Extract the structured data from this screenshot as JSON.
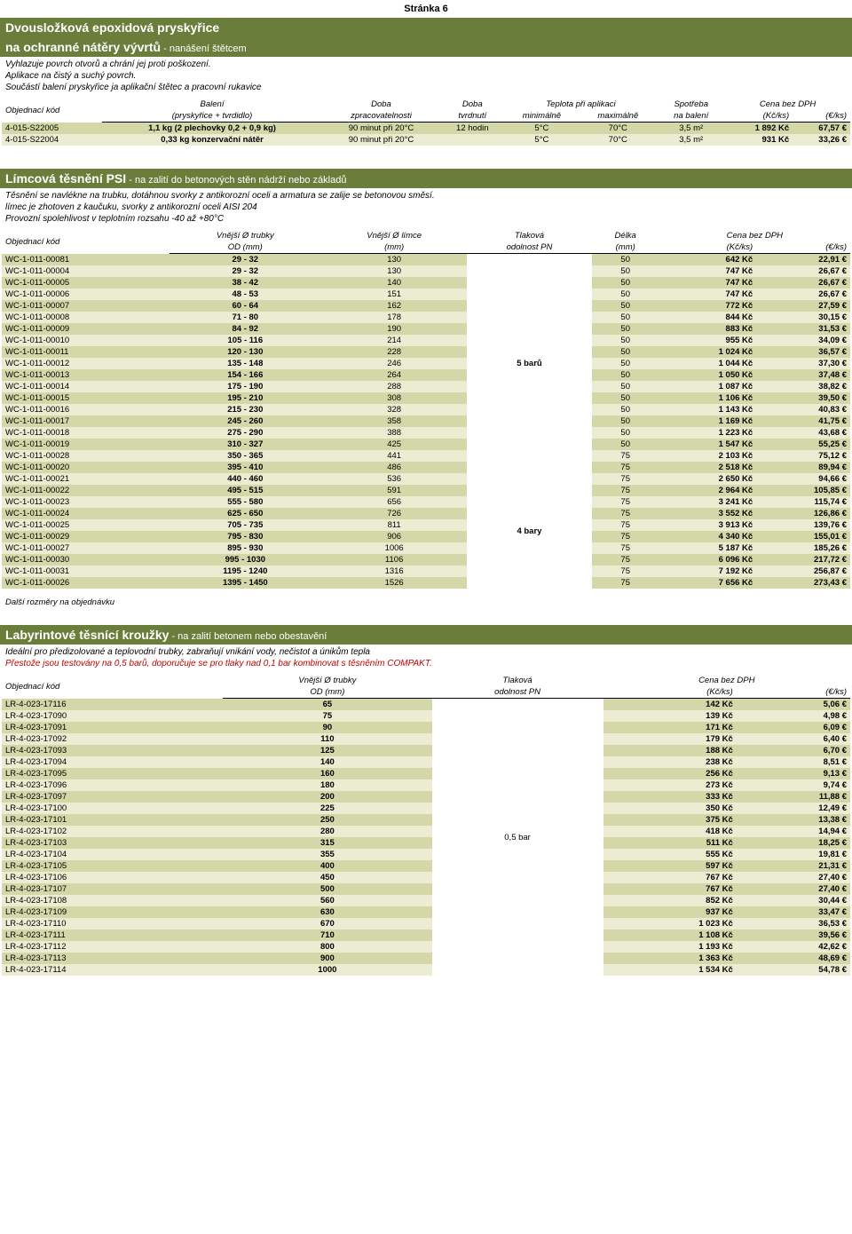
{
  "pageNumber": "Stránka 6",
  "colors": {
    "headerBg": "#6b7d3a",
    "headerText": "#ffffff",
    "stripeOdd": "#d4d8a8",
    "stripeEven": "#ececd2",
    "redText": "#c00000"
  },
  "section1": {
    "title": "Dvousložková epoxidová pryskyřice",
    "subtitle1": "na ochranné nátěry vývrtů",
    "subtitleSuffix": " - nanášení štětcem",
    "desc": [
      "Vyhlazuje povrch otvorů a chrání jej proti poškození.",
      "Aplikace na čistý a suchý povrch.",
      "Součástí balení pryskyřice ja aplikační štětec a pracovní rukavice"
    ],
    "headers": {
      "c1a": "Objednací kód",
      "c1b": "",
      "c2a": "Balení",
      "c2b": "(pryskyřice + tvrdidlo)",
      "c3a": "Doba",
      "c3b": "zpracovatelnosti",
      "c4a": "Doba",
      "c4b": "tvrdnutí",
      "c5a": "Teplota při aplikaci",
      "c5ba": "minimálně",
      "c5bb": "maximálně",
      "c6a": "Spotřeba",
      "c6b": "na balení",
      "c7a": "Cena bez DPH",
      "c7ba": "(Kč/ks)",
      "c7bb": "(€/ks)"
    },
    "rows": [
      {
        "code": "4-015-S22005",
        "pack": "1,1 kg (2 plechovky 0,2 + 0,9 kg)",
        "work": "90 minut při 20°C",
        "hard": "12 hodin",
        "tmin": "5°C",
        "tmax": "70°C",
        "use": "3,5 m²",
        "kc": "1 892 Kč",
        "eur": "67,57 €"
      },
      {
        "code": "4-015-S22004",
        "pack": "0,33 kg konzervační nátěr",
        "work": "90 minut při 20°C",
        "hard": "",
        "tmin": "5°C",
        "tmax": "70°C",
        "use": "3,5 m²",
        "kc": "931 Kč",
        "eur": "33,26 €"
      }
    ]
  },
  "section2": {
    "title": "Límcová těsnění PSI",
    "titleSuffix": " - na zalití do betonových stěn nádrží nebo základů",
    "desc": [
      "Těsnění se navlékne na trubku, dotáhnou svorky z antikorozní oceli a armatura se zalije se betonovou směsí.",
      "límec je zhotoven z kaučuku, svorky z antikorozní oceli AISI 204",
      "Provozní spolehlivost v teplotním rozsahu -40 až +80°C"
    ],
    "headers": {
      "c1a": "Objednací kód",
      "c1b": "",
      "c2a": "Vnější Ø trubky",
      "c2b": "OD (mm)",
      "c3a": "Vnější Ø límce",
      "c3b": "(mm)",
      "c4a": "Tlaková",
      "c4b": "odolnost PN",
      "c5a": "Délka",
      "c5b": "(mm)",
      "c6a": "Cena bez DPH",
      "c6ba": "(Kč/ks)",
      "c6bb": "(€/ks)"
    },
    "pressureGroups": [
      {
        "label": "5 barů",
        "count": 19
      },
      {
        "label": "4 bary",
        "count": 10
      }
    ],
    "rows": [
      {
        "code": "WC-1-011-00081",
        "od": "29 - 32",
        "collar": "130",
        "len": "50",
        "kc": "642 Kč",
        "eur": "22,91 €"
      },
      {
        "code": "WC-1-011-00004",
        "od": "29 - 32",
        "collar": "130",
        "len": "50",
        "kc": "747 Kč",
        "eur": "26,67 €"
      },
      {
        "code": "WC-1-011-00005",
        "od": "38 - 42",
        "collar": "140",
        "len": "50",
        "kc": "747 Kč",
        "eur": "26,67 €"
      },
      {
        "code": "WC-1-011-00006",
        "od": "48 - 53",
        "collar": "151",
        "len": "50",
        "kc": "747 Kč",
        "eur": "26,67 €"
      },
      {
        "code": "WC-1-011-00007",
        "od": "60 - 64",
        "collar": "162",
        "len": "50",
        "kc": "772 Kč",
        "eur": "27,59 €"
      },
      {
        "code": "WC-1-011-00008",
        "od": "71 - 80",
        "collar": "178",
        "len": "50",
        "kc": "844 Kč",
        "eur": "30,15 €"
      },
      {
        "code": "WC-1-011-00009",
        "od": "84 - 92",
        "collar": "190",
        "len": "50",
        "kc": "883 Kč",
        "eur": "31,53 €"
      },
      {
        "code": "WC-1-011-00010",
        "od": "105 - 116",
        "collar": "214",
        "len": "50",
        "kc": "955 Kč",
        "eur": "34,09 €"
      },
      {
        "code": "WC-1-011-00011",
        "od": "120 - 130",
        "collar": "228",
        "len": "50",
        "kc": "1 024 Kč",
        "eur": "36,57 €"
      },
      {
        "code": "WC-1-011-00012",
        "od": "135 - 148",
        "collar": "246",
        "len": "50",
        "kc": "1 044 Kč",
        "eur": "37,30 €"
      },
      {
        "code": "WC-1-011-00013",
        "od": "154 - 166",
        "collar": "264",
        "len": "50",
        "kc": "1 050 Kč",
        "eur": "37,48 €"
      },
      {
        "code": "WC-1-011-00014",
        "od": "175 - 190",
        "collar": "288",
        "len": "50",
        "kc": "1 087 Kč",
        "eur": "38,82 €"
      },
      {
        "code": "WC-1-011-00015",
        "od": "195 - 210",
        "collar": "308",
        "len": "50",
        "kc": "1 106 Kč",
        "eur": "39,50 €"
      },
      {
        "code": "WC-1-011-00016",
        "od": "215 - 230",
        "collar": "328",
        "len": "50",
        "kc": "1 143 Kč",
        "eur": "40,83 €"
      },
      {
        "code": "WC-1-011-00017",
        "od": "245 - 260",
        "collar": "358",
        "len": "50",
        "kc": "1 169 Kč",
        "eur": "41,75 €"
      },
      {
        "code": "WC-1-011-00018",
        "od": "275 - 290",
        "collar": "388",
        "len": "50",
        "kc": "1 223 Kč",
        "eur": "43,68 €"
      },
      {
        "code": "WC-1-011-00019",
        "od": "310 - 327",
        "collar": "425",
        "len": "50",
        "kc": "1 547 Kč",
        "eur": "55,25 €"
      },
      {
        "code": "WC-1-011-00028",
        "od": "350 - 365",
        "collar": "441",
        "len": "75",
        "kc": "2 103 Kč",
        "eur": "75,12 €"
      },
      {
        "code": "WC-1-011-00020",
        "od": "395 - 410",
        "collar": "486",
        "len": "75",
        "kc": "2 518 Kč",
        "eur": "89,94 €"
      },
      {
        "code": "WC-1-011-00021",
        "od": "440 - 460",
        "collar": "536",
        "len": "75",
        "kc": "2 650 Kč",
        "eur": "94,66 €"
      },
      {
        "code": "WC-1-011-00022",
        "od": "495 - 515",
        "collar": "591",
        "len": "75",
        "kc": "2 964 Kč",
        "eur": "105,85 €"
      },
      {
        "code": "WC-1-011-00023",
        "od": "555 - 580",
        "collar": "656",
        "len": "75",
        "kc": "3 241 Kč",
        "eur": "115,74 €"
      },
      {
        "code": "WC-1-011-00024",
        "od": "625 - 650",
        "collar": "726",
        "len": "75",
        "kc": "3 552 Kč",
        "eur": "126,86 €"
      },
      {
        "code": "WC-1-011-00025",
        "od": "705 - 735",
        "collar": "811",
        "len": "75",
        "kc": "3 913 Kč",
        "eur": "139,76 €"
      },
      {
        "code": "WC-1-011-00029",
        "od": "795 - 830",
        "collar": "906",
        "len": "75",
        "kc": "4 340 Kč",
        "eur": "155,01 €"
      },
      {
        "code": "WC-1-011-00027",
        "od": "895 - 930",
        "collar": "1006",
        "len": "75",
        "kc": "5 187 Kč",
        "eur": "185,26 €"
      },
      {
        "code": "WC-1-011-00030",
        "od": "995 - 1030",
        "collar": "1106",
        "len": "75",
        "kc": "6 096 Kč",
        "eur": "217,72 €"
      },
      {
        "code": "WC-1-011-00031",
        "od": "1195 - 1240",
        "collar": "1316",
        "len": "75",
        "kc": "7 192 Kč",
        "eur": "256,87 €"
      },
      {
        "code": "WC-1-011-00026",
        "od": "1395 - 1450",
        "collar": "1526",
        "len": "75",
        "kc": "7 656 Kč",
        "eur": "273,43 €"
      }
    ],
    "footNote": "Další rozměry na objednávku"
  },
  "section3": {
    "title": "Labyrintové těsnící kroužky",
    "titleSuffix": " - na zalití betonem nebo obestavění",
    "desc": [
      "Ideální pro předizolované a teplovodní trubky, zabraňují vnikání vody, nečistot a únikům tepla"
    ],
    "redNote": "Přestože jsou testovány na 0,5 barů, doporučuje se pro tlaky nad 0,1 bar kombinovat s těsněním COMPAKT.",
    "headers": {
      "c1a": "Objednací kód",
      "c1b": "",
      "c2a": "Vnější Ø trubky",
      "c2b": "OD (mm)",
      "c3a": "Tlaková",
      "c3b": "odolnost PN",
      "c4a": "Cena bez DPH",
      "c4ba": "(Kč/ks)",
      "c4bb": "(€/ks)"
    },
    "pressureLabel": "0,5 bar",
    "rows": [
      {
        "code": "LR-4-023-17116",
        "od": "65",
        "kc": "142 Kč",
        "eur": "5,06 €"
      },
      {
        "code": "LR-4-023-17090",
        "od": "75",
        "kc": "139 Kč",
        "eur": "4,98 €"
      },
      {
        "code": "LR-4-023-17091",
        "od": "90",
        "kc": "171 Kč",
        "eur": "6,09 €"
      },
      {
        "code": "LR-4-023-17092",
        "od": "110",
        "kc": "179 Kč",
        "eur": "6,40 €"
      },
      {
        "code": "LR-4-023-17093",
        "od": "125",
        "kc": "188 Kč",
        "eur": "6,70 €"
      },
      {
        "code": "LR-4-023-17094",
        "od": "140",
        "kc": "238 Kč",
        "eur": "8,51 €"
      },
      {
        "code": "LR-4-023-17095",
        "od": "160",
        "kc": "256 Kč",
        "eur": "9,13 €"
      },
      {
        "code": "LR-4-023-17096",
        "od": "180",
        "kc": "273 Kč",
        "eur": "9,74 €"
      },
      {
        "code": "LR-4-023-17097",
        "od": "200",
        "kc": "333 Kč",
        "eur": "11,88 €"
      },
      {
        "code": "LR-4-023-17100",
        "od": "225",
        "kc": "350 Kč",
        "eur": "12,49 €"
      },
      {
        "code": "LR-4-023-17101",
        "od": "250",
        "kc": "375 Kč",
        "eur": "13,38 €"
      },
      {
        "code": "LR-4-023-17102",
        "od": "280",
        "kc": "418 Kč",
        "eur": "14,94 €"
      },
      {
        "code": "LR-4-023-17103",
        "od": "315",
        "kc": "511 Kč",
        "eur": "18,25 €"
      },
      {
        "code": "LR-4-023-17104",
        "od": "355",
        "kc": "555 Kč",
        "eur": "19,81 €"
      },
      {
        "code": "LR-4-023-17105",
        "od": "400",
        "kc": "597 Kč",
        "eur": "21,31 €"
      },
      {
        "code": "LR-4-023-17106",
        "od": "450",
        "kc": "767 Kč",
        "eur": "27,40 €"
      },
      {
        "code": "LR-4-023-17107",
        "od": "500",
        "kc": "767 Kč",
        "eur": "27,40 €"
      },
      {
        "code": "LR-4-023-17108",
        "od": "560",
        "kc": "852 Kč",
        "eur": "30,44 €"
      },
      {
        "code": "LR-4-023-17109",
        "od": "630",
        "kc": "937 Kč",
        "eur": "33,47 €"
      },
      {
        "code": "LR-4-023-17110",
        "od": "670",
        "kc": "1 023 Kč",
        "eur": "36,53 €"
      },
      {
        "code": "LR-4-023-17111",
        "od": "710",
        "kc": "1 108 Kč",
        "eur": "39,56 €"
      },
      {
        "code": "LR-4-023-17112",
        "od": "800",
        "kc": "1 193 Kč",
        "eur": "42,62 €"
      },
      {
        "code": "LR-4-023-17113",
        "od": "900",
        "kc": "1 363 Kč",
        "eur": "48,69 €"
      },
      {
        "code": "LR-4-023-17114",
        "od": "1000",
        "kc": "1 534 Kč",
        "eur": "54,78 €"
      }
    ]
  }
}
